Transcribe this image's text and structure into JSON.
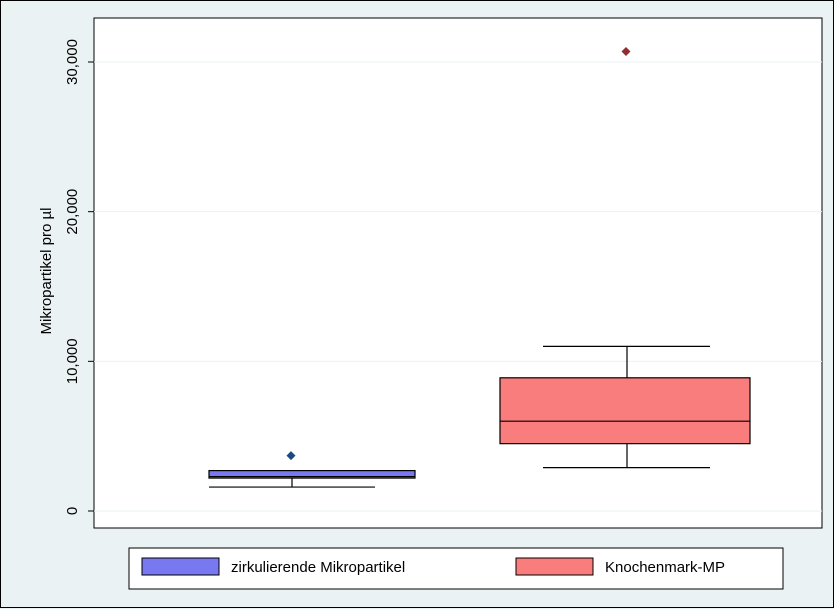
{
  "chart_data": {
    "type": "box",
    "title": "",
    "xlabel": "",
    "ylabel": "Mikropartikel pro µl",
    "ylim": [
      -1000,
      32000
    ],
    "yticks": [
      0,
      10000,
      20000,
      30000
    ],
    "ytick_labels": [
      "0",
      "10,000",
      "20,000",
      "30,000"
    ],
    "grid": true,
    "legend_position": "bottom",
    "series": [
      {
        "name": "zirkulierende Mikropartikel",
        "color": "#7878f0",
        "outlier_color": "#1a4b80",
        "whisker_low": 1600,
        "q1": 2200,
        "median": 2300,
        "q3": 2700,
        "whisker_high": 2700,
        "outliers": [
          3700
        ]
      },
      {
        "name": "Knochenmark-MP",
        "color": "#fa7d7d",
        "outlier_color": "#8f2f2f",
        "whisker_low": 2900,
        "q1": 4500,
        "median": 6000,
        "q3": 8900,
        "whisker_high": 11000,
        "outliers": [
          30700
        ]
      }
    ]
  }
}
